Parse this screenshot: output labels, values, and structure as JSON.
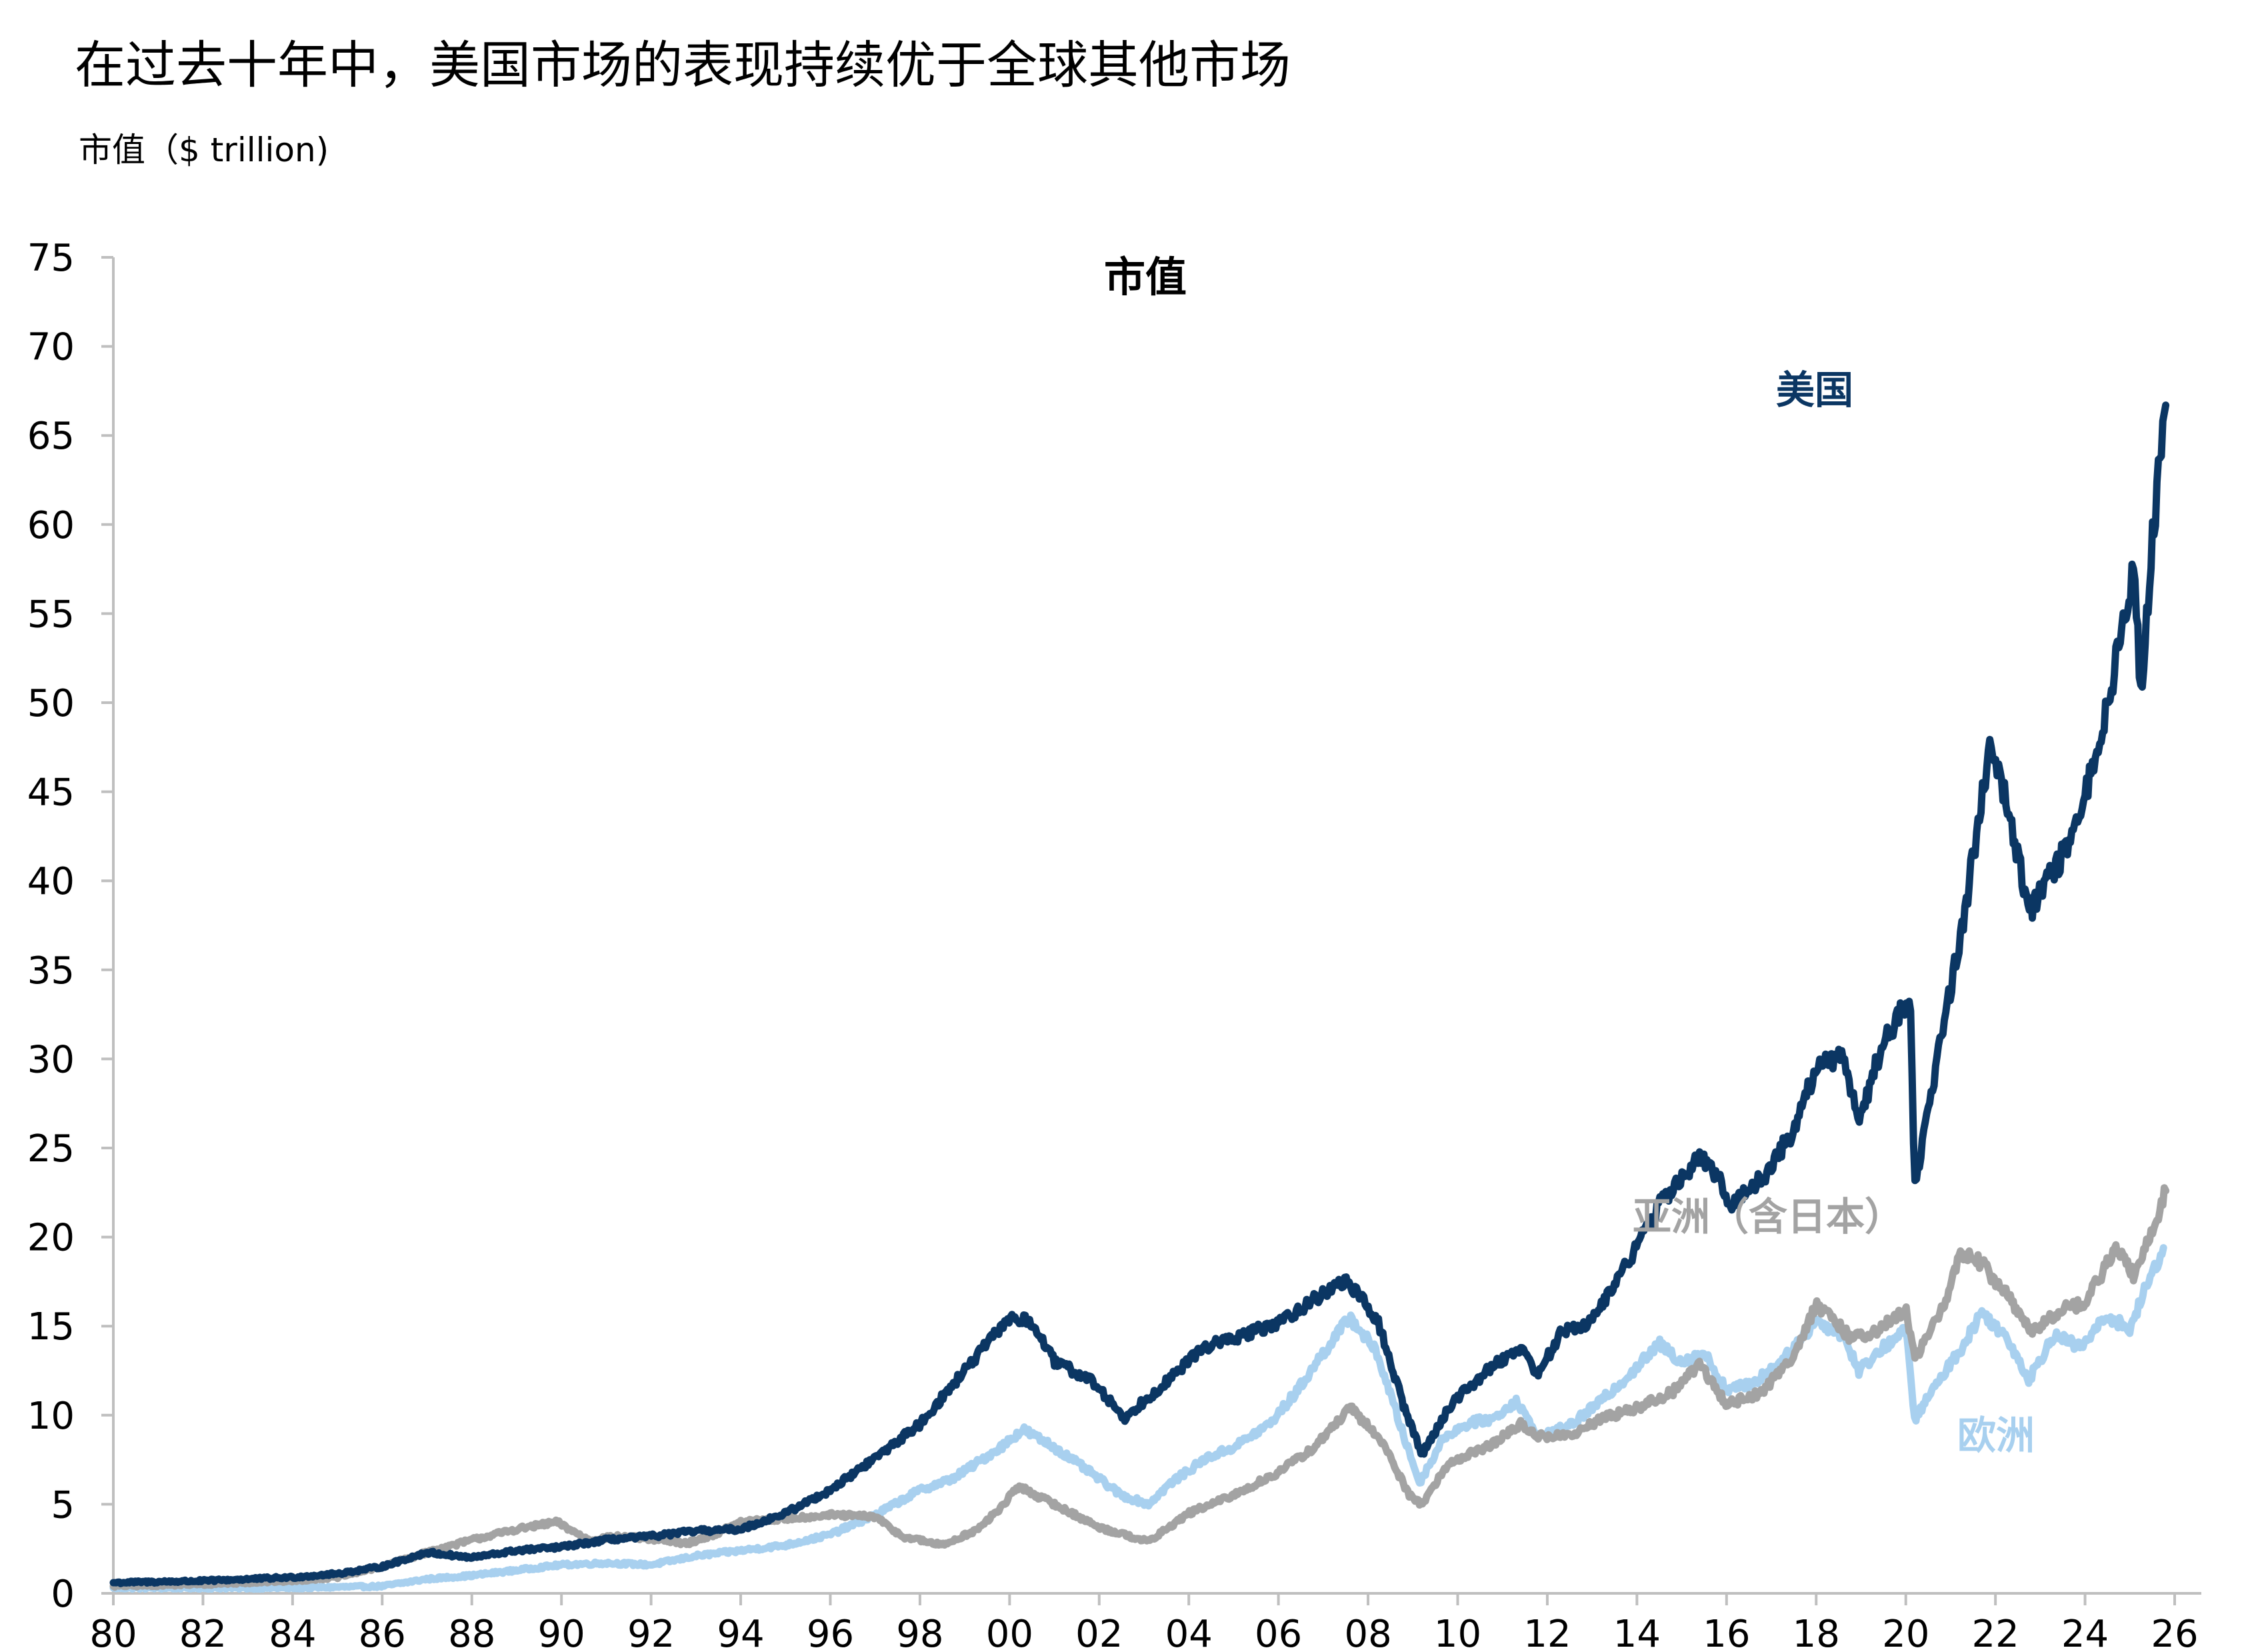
{
  "header": {
    "title": "在过去十年中，美国市场的表现持续优于全球其他市场",
    "subtitle": "市值（$ trillion)"
  },
  "chart_data": {
    "type": "line",
    "title": "市值",
    "xlabel": "",
    "ylabel": "",
    "xlim": [
      1980,
      2026
    ],
    "ylim": [
      0,
      75
    ],
    "y_ticks": [
      0,
      5,
      10,
      15,
      20,
      25,
      30,
      35,
      40,
      45,
      50,
      55,
      60,
      65,
      70,
      75
    ],
    "x_ticks": [
      {
        "value": 1980,
        "label": "80"
      },
      {
        "value": 1982,
        "label": "82"
      },
      {
        "value": 1984,
        "label": "84"
      },
      {
        "value": 1986,
        "label": "86"
      },
      {
        "value": 1988,
        "label": "88"
      },
      {
        "value": 1990,
        "label": "90"
      },
      {
        "value": 1992,
        "label": "92"
      },
      {
        "value": 1994,
        "label": "94"
      },
      {
        "value": 1996,
        "label": "96"
      },
      {
        "value": 1998,
        "label": "98"
      },
      {
        "value": 2000,
        "label": "00"
      },
      {
        "value": 2002,
        "label": "02"
      },
      {
        "value": 2004,
        "label": "04"
      },
      {
        "value": 2006,
        "label": "06"
      },
      {
        "value": 2008,
        "label": "08"
      },
      {
        "value": 2010,
        "label": "10"
      },
      {
        "value": 2012,
        "label": "12"
      },
      {
        "value": 2014,
        "label": "14"
      },
      {
        "value": 2016,
        "label": "16"
      },
      {
        "value": 2018,
        "label": "18"
      },
      {
        "value": 2020,
        "label": "20"
      },
      {
        "value": 2022,
        "label": "22"
      },
      {
        "value": 2024,
        "label": "24"
      },
      {
        "value": 2026,
        "label": "26"
      }
    ],
    "grid": false,
    "series": [
      {
        "name": "欧洲",
        "color": "#a8d0ef",
        "points": [
          [
            1980,
            0.3
          ],
          [
            1982,
            0.3
          ],
          [
            1984,
            0.3
          ],
          [
            1986,
            0.4
          ],
          [
            1987,
            0.8
          ],
          [
            1988,
            1.0
          ],
          [
            1989,
            1.3
          ],
          [
            1990,
            1.6
          ],
          [
            1991,
            1.7
          ],
          [
            1992,
            1.6
          ],
          [
            1993,
            2.1
          ],
          [
            1994,
            2.4
          ],
          [
            1995,
            2.7
          ],
          [
            1996,
            3.3
          ],
          [
            1997,
            4.4
          ],
          [
            1998,
            5.8
          ],
          [
            1998.7,
            6.4
          ],
          [
            1999.2,
            7.2
          ],
          [
            1999.8,
            8.2
          ],
          [
            2000.3,
            9.2
          ],
          [
            2001,
            8.2
          ],
          [
            2001.8,
            6.8
          ],
          [
            2002.5,
            5.5
          ],
          [
            2003.1,
            5.0
          ],
          [
            2003.6,
            6.2
          ],
          [
            2004.4,
            7.6
          ],
          [
            2005,
            8.2
          ],
          [
            2005.8,
            9.5
          ],
          [
            2006.4,
            11.3
          ],
          [
            2007,
            13.5
          ],
          [
            2007.6,
            15.5
          ],
          [
            2008.2,
            13.5
          ],
          [
            2008.8,
            8.8
          ],
          [
            2009.15,
            6.2
          ],
          [
            2009.7,
            8.8
          ],
          [
            2010.3,
            9.6
          ],
          [
            2010.8,
            9.8
          ],
          [
            2011.3,
            10.8
          ],
          [
            2011.8,
            8.8
          ],
          [
            2012.5,
            9.4
          ],
          [
            2013.2,
            10.8
          ],
          [
            2013.8,
            12.2
          ],
          [
            2014.5,
            14.0
          ],
          [
            2015,
            13.0
          ],
          [
            2015.5,
            13.5
          ],
          [
            2016,
            11.4
          ],
          [
            2016.6,
            11.8
          ],
          [
            2017.3,
            13.2
          ],
          [
            2018,
            15.3
          ],
          [
            2018.6,
            14.5
          ],
          [
            2018.95,
            12.5
          ],
          [
            2019.5,
            13.8
          ],
          [
            2020,
            14.8
          ],
          [
            2020.2,
            9.8
          ],
          [
            2020.7,
            11.8
          ],
          [
            2021.3,
            14.0
          ],
          [
            2021.7,
            15.8
          ],
          [
            2022.3,
            14.2
          ],
          [
            2022.75,
            12.0
          ],
          [
            2023.3,
            14.5
          ],
          [
            2023.9,
            13.8
          ],
          [
            2024.5,
            15.6
          ],
          [
            2025.0,
            14.8
          ],
          [
            2025.3,
            16.8
          ],
          [
            2025.75,
            19.4
          ]
        ]
      },
      {
        "name": "亚洲（含日本）",
        "color": "#a3a3a3",
        "points": [
          [
            1980,
            0.4
          ],
          [
            1982,
            0.5
          ],
          [
            1984,
            0.7
          ],
          [
            1985,
            0.9
          ],
          [
            1986,
            1.5
          ],
          [
            1987,
            2.3
          ],
          [
            1988,
            3.0
          ],
          [
            1989,
            3.6
          ],
          [
            1989.9,
            4.0
          ],
          [
            1990.6,
            3.0
          ],
          [
            1991.3,
            3.2
          ],
          [
            1992.2,
            3.0
          ],
          [
            1992.8,
            2.8
          ],
          [
            1993.5,
            3.4
          ],
          [
            1994,
            4.0
          ],
          [
            1995,
            4.2
          ],
          [
            1996,
            4.4
          ],
          [
            1997,
            4.3
          ],
          [
            1997.6,
            3.2
          ],
          [
            1998.5,
            2.7
          ],
          [
            1999.3,
            3.6
          ],
          [
            1999.8,
            4.8
          ],
          [
            2000.2,
            6.0
          ],
          [
            2001,
            5.0
          ],
          [
            2002,
            3.7
          ],
          [
            2003.1,
            2.9
          ],
          [
            2004,
            4.5
          ],
          [
            2005,
            5.5
          ],
          [
            2006,
            6.8
          ],
          [
            2006.8,
            8.2
          ],
          [
            2007.6,
            10.4
          ],
          [
            2008.3,
            8.6
          ],
          [
            2008.9,
            5.6
          ],
          [
            2009.2,
            5.0
          ],
          [
            2009.8,
            7.3
          ],
          [
            2010.8,
            8.4
          ],
          [
            2011.4,
            9.5
          ],
          [
            2011.8,
            8.8
          ],
          [
            2012.6,
            8.9
          ],
          [
            2013.2,
            9.8
          ],
          [
            2014,
            10.4
          ],
          [
            2014.8,
            11.3
          ],
          [
            2015.4,
            12.9
          ],
          [
            2016,
            10.6
          ],
          [
            2016.8,
            11.3
          ],
          [
            2017.5,
            13.4
          ],
          [
            2018,
            16.2
          ],
          [
            2018.8,
            14.3
          ],
          [
            2019.4,
            14.8
          ],
          [
            2020,
            15.9
          ],
          [
            2020.2,
            13.2
          ],
          [
            2020.9,
            16.3
          ],
          [
            2021.2,
            19.2
          ],
          [
            2021.7,
            18.5
          ],
          [
            2022.4,
            16.3
          ],
          [
            2022.8,
            14.6
          ],
          [
            2023.5,
            16.0
          ],
          [
            2024,
            16.3
          ],
          [
            2024.7,
            19.4
          ],
          [
            2025.1,
            17.8
          ],
          [
            2025.5,
            20.3
          ],
          [
            2025.8,
            22.6
          ]
        ]
      },
      {
        "name": "美国",
        "color": "#0b3663",
        "points": [
          [
            1980,
            0.6
          ],
          [
            1982,
            0.7
          ],
          [
            1984,
            0.9
          ],
          [
            1985,
            1.1
          ],
          [
            1986,
            1.5
          ],
          [
            1987,
            2.3
          ],
          [
            1988,
            2.0
          ],
          [
            1989,
            2.4
          ],
          [
            1990,
            2.6
          ],
          [
            1991,
            3.0
          ],
          [
            1992,
            3.2
          ],
          [
            1993,
            3.5
          ],
          [
            1994,
            3.6
          ],
          [
            1995,
            4.5
          ],
          [
            1996,
            5.8
          ],
          [
            1997,
            7.6
          ],
          [
            1998,
            9.5
          ],
          [
            1999,
            12.5
          ],
          [
            2000,
            15.5
          ],
          [
            2000.5,
            15.2
          ],
          [
            2001,
            13.0
          ],
          [
            2001.8,
            12.0
          ],
          [
            2002.6,
            9.8
          ],
          [
            2002.9,
            10.6
          ],
          [
            2003.7,
            12.3
          ],
          [
            2004.3,
            13.8
          ],
          [
            2005,
            14.3
          ],
          [
            2006,
            15.2
          ],
          [
            2006.8,
            16.5
          ],
          [
            2007.5,
            17.6
          ],
          [
            2008.2,
            15.4
          ],
          [
            2008.8,
            10.5
          ],
          [
            2009.2,
            7.8
          ],
          [
            2009.9,
            10.8
          ],
          [
            2010.8,
            12.8
          ],
          [
            2011.4,
            13.8
          ],
          [
            2011.8,
            12.3
          ],
          [
            2012.3,
            14.6
          ],
          [
            2013,
            15.3
          ],
          [
            2013.8,
            18.6
          ],
          [
            2014.5,
            21.8
          ],
          [
            2015.4,
            24.5
          ],
          [
            2015.9,
            23.0
          ],
          [
            2016.1,
            21.8
          ],
          [
            2016.8,
            23.3
          ],
          [
            2017.5,
            26.0
          ],
          [
            2018,
            29.5
          ],
          [
            2018.6,
            30.3
          ],
          [
            2018.95,
            26.5
          ],
          [
            2019.5,
            31.0
          ],
          [
            2020.1,
            33.4
          ],
          [
            2020.2,
            22.8
          ],
          [
            2020.7,
            30.0
          ],
          [
            2021.3,
            38.0
          ],
          [
            2021.9,
            48.0
          ],
          [
            2022.3,
            44.0
          ],
          [
            2022.75,
            38.3
          ],
          [
            2023.3,
            40.5
          ],
          [
            2023.8,
            42.8
          ],
          [
            2024.3,
            47.8
          ],
          [
            2024.8,
            53.5
          ],
          [
            2025.1,
            58.0
          ],
          [
            2025.25,
            50.0
          ],
          [
            2025.5,
            59.0
          ],
          [
            2025.8,
            66.7
          ]
        ]
      }
    ]
  }
}
